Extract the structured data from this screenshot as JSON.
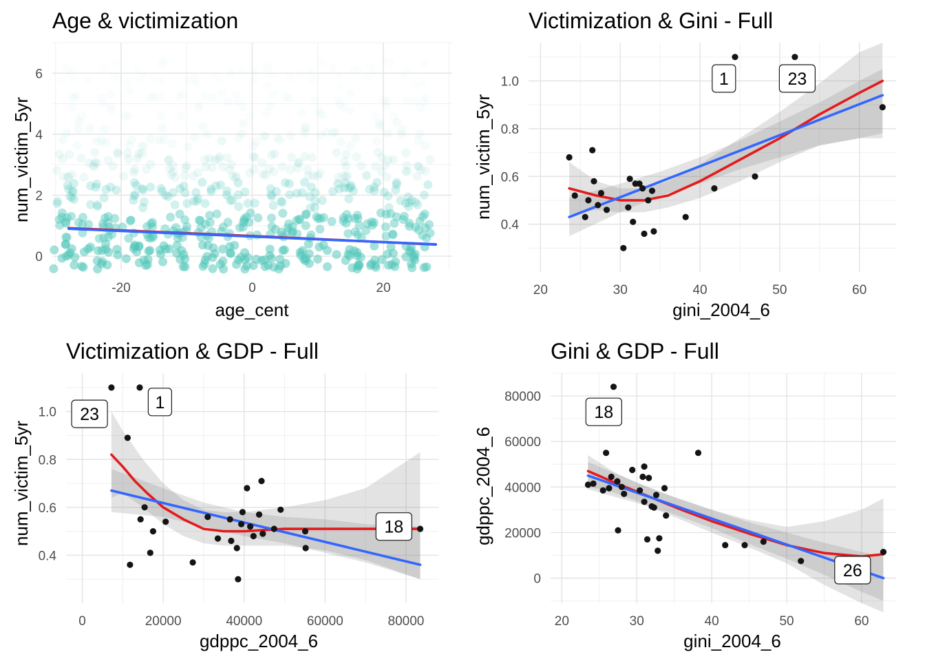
{
  "chart_data": [
    {
      "type": "scatter",
      "title": "Age & victimization",
      "xlabel": "age_cent",
      "ylabel": "num_victim_5yr",
      "xlim": [
        -30.5,
        30.5
      ],
      "ylim": [
        -0.45,
        7.0
      ],
      "xticks": [
        -20,
        0,
        20
      ],
      "yticks": [
        0,
        2,
        4,
        6
      ],
      "grid": true,
      "point_color": "#4EC5B9",
      "jitter_rows": [
        {
          "y": 0,
          "alpha": 0.95
        },
        {
          "y": 1,
          "alpha": 0.8
        },
        {
          "y": 2,
          "alpha": 0.45
        },
        {
          "y": 3,
          "alpha": 0.18
        },
        {
          "y": 4,
          "alpha": 0.1
        },
        {
          "y": 5,
          "alpha": 0.05
        },
        {
          "y": 6,
          "alpha": 0.03
        }
      ],
      "fits": [
        {
          "color": "#E41A1C",
          "x": [
            -28,
            0,
            28
          ],
          "y": [
            0.92,
            0.66,
            0.38
          ]
        },
        {
          "color": "#3366FF",
          "x": [
            -28,
            28
          ],
          "y": [
            0.9,
            0.39
          ]
        }
      ]
    },
    {
      "type": "scatter",
      "title": "Victimization & Gini - Full",
      "xlabel": "gini_2004_6",
      "ylabel": "num_victim_5yr",
      "xlim": [
        18.5,
        64.6
      ],
      "ylim": [
        0.2,
        1.16
      ],
      "xticks": [
        20,
        30,
        40,
        50,
        60
      ],
      "yticks": [
        0.4,
        0.6,
        0.8,
        1.0
      ],
      "ytick_labels": [
        "0.4",
        "0.6",
        "0.8",
        "1.0"
      ],
      "grid": true,
      "points": [
        {
          "x": 23.6,
          "y": 0.68
        },
        {
          "x": 24.3,
          "y": 0.52
        },
        {
          "x": 25.6,
          "y": 0.43
        },
        {
          "x": 26.0,
          "y": 0.5
        },
        {
          "x": 26.5,
          "y": 0.71
        },
        {
          "x": 26.7,
          "y": 0.58
        },
        {
          "x": 27.2,
          "y": 0.48
        },
        {
          "x": 27.6,
          "y": 0.53
        },
        {
          "x": 28.3,
          "y": 0.46
        },
        {
          "x": 30.4,
          "y": 0.3
        },
        {
          "x": 31.0,
          "y": 0.47
        },
        {
          "x": 31.2,
          "y": 0.59
        },
        {
          "x": 31.6,
          "y": 0.41
        },
        {
          "x": 31.9,
          "y": 0.57
        },
        {
          "x": 32.4,
          "y": 0.57
        },
        {
          "x": 32.8,
          "y": 0.55
        },
        {
          "x": 33.0,
          "y": 0.36
        },
        {
          "x": 33.5,
          "y": 0.5
        },
        {
          "x": 34.0,
          "y": 0.54
        },
        {
          "x": 34.2,
          "y": 0.37
        },
        {
          "x": 38.2,
          "y": 0.43
        },
        {
          "x": 41.8,
          "y": 0.55
        },
        {
          "x": 44.4,
          "y": 1.1
        },
        {
          "x": 46.9,
          "y": 0.6
        },
        {
          "x": 51.9,
          "y": 1.1
        },
        {
          "x": 62.9,
          "y": 0.89
        }
      ],
      "labels": [
        {
          "text": "1",
          "x": 43.0,
          "y": 1.01
        },
        {
          "text": "23",
          "x": 52.2,
          "y": 1.01
        }
      ],
      "fits": [
        {
          "color": "#E41A1C",
          "x": [
            23.6,
            27,
            30,
            33,
            36,
            40,
            45,
            50,
            55,
            60,
            62.9
          ],
          "y": [
            0.55,
            0.52,
            0.5,
            0.5,
            0.52,
            0.58,
            0.67,
            0.76,
            0.86,
            0.95,
            1.0
          ]
        },
        {
          "color": "#3366FF",
          "x": [
            23.6,
            62.9
          ],
          "y": [
            0.43,
            0.94
          ]
        }
      ],
      "bands": [
        {
          "x": [
            23.6,
            27,
            30,
            33,
            36,
            40,
            45,
            50,
            55,
            60,
            62.9
          ],
          "lower": [
            0.44,
            0.46,
            0.45,
            0.45,
            0.47,
            0.51,
            0.58,
            0.66,
            0.73,
            0.76,
            0.76
          ],
          "upper": [
            0.66,
            0.58,
            0.55,
            0.55,
            0.58,
            0.65,
            0.76,
            0.87,
            0.99,
            1.12,
            1.16
          ]
        },
        {
          "x": [
            23.6,
            30,
            35,
            40,
            45,
            50,
            55,
            60,
            62.9
          ],
          "lower": [
            0.35,
            0.45,
            0.52,
            0.57,
            0.63,
            0.68,
            0.73,
            0.76,
            0.78
          ],
          "upper": [
            0.51,
            0.57,
            0.62,
            0.68,
            0.75,
            0.83,
            0.91,
            1.0,
            1.05
          ]
        }
      ]
    },
    {
      "type": "scatter",
      "title": "Victimization & GDP - Full",
      "xlabel": "gdppc_2004_6",
      "ylabel": "num_victim_5yr",
      "xlim": [
        -4000,
        88000
      ],
      "ylim": [
        0.2,
        1.16
      ],
      "xticks": [
        0,
        20000,
        40000,
        60000,
        80000
      ],
      "yticks": [
        0.4,
        0.6,
        0.8,
        1.0
      ],
      "ytick_labels": [
        "0.4",
        "0.6",
        "0.8",
        "1.0"
      ],
      "grid": true,
      "points": [
        {
          "x": 7200,
          "y": 1.1
        },
        {
          "x": 11200,
          "y": 0.89
        },
        {
          "x": 11800,
          "y": 0.36
        },
        {
          "x": 14200,
          "y": 1.1
        },
        {
          "x": 14400,
          "y": 0.55
        },
        {
          "x": 15400,
          "y": 0.6
        },
        {
          "x": 16800,
          "y": 0.41
        },
        {
          "x": 17500,
          "y": 0.5
        },
        {
          "x": 20600,
          "y": 0.54
        },
        {
          "x": 27300,
          "y": 0.37
        },
        {
          "x": 31000,
          "y": 0.56
        },
        {
          "x": 33500,
          "y": 0.47
        },
        {
          "x": 36500,
          "y": 0.55
        },
        {
          "x": 36800,
          "y": 0.46
        },
        {
          "x": 38200,
          "y": 0.43
        },
        {
          "x": 38500,
          "y": 0.3
        },
        {
          "x": 39300,
          "y": 0.53
        },
        {
          "x": 39600,
          "y": 0.58
        },
        {
          "x": 40700,
          "y": 0.68
        },
        {
          "x": 41500,
          "y": 0.52
        },
        {
          "x": 42300,
          "y": 0.48
        },
        {
          "x": 43700,
          "y": 0.57
        },
        {
          "x": 44300,
          "y": 0.71
        },
        {
          "x": 44600,
          "y": 0.49
        },
        {
          "x": 47400,
          "y": 0.51
        },
        {
          "x": 49000,
          "y": 0.59
        },
        {
          "x": 55100,
          "y": 0.5
        },
        {
          "x": 55200,
          "y": 0.43
        },
        {
          "x": 83500,
          "y": 0.51
        }
      ],
      "labels": [
        {
          "text": "23",
          "x": 1800,
          "y": 0.99
        },
        {
          "text": "1",
          "x": 19200,
          "y": 1.04
        },
        {
          "text": "18",
          "x": 77000,
          "y": 0.52
        }
      ],
      "fits": [
        {
          "color": "#E41A1C",
          "x": [
            7200,
            10000,
            13000,
            16000,
            20000,
            25000,
            30000,
            35000,
            40000,
            50000,
            60000,
            70000,
            83500
          ],
          "y": [
            0.82,
            0.77,
            0.71,
            0.66,
            0.6,
            0.55,
            0.51,
            0.5,
            0.5,
            0.51,
            0.51,
            0.51,
            0.51
          ]
        },
        {
          "color": "#3366FF",
          "x": [
            7200,
            83500
          ],
          "y": [
            0.67,
            0.36
          ]
        }
      ],
      "bands": [
        {
          "x": [
            7200,
            10000,
            15000,
            20000,
            25000,
            30000,
            35000,
            40000,
            50000,
            60000,
            70000,
            83500
          ],
          "lower": [
            0.64,
            0.66,
            0.6,
            0.53,
            0.48,
            0.45,
            0.44,
            0.44,
            0.44,
            0.42,
            0.38,
            0.3
          ],
          "upper": [
            1.0,
            0.92,
            0.8,
            0.7,
            0.63,
            0.59,
            0.58,
            0.58,
            0.6,
            0.63,
            0.68,
            0.83
          ]
        },
        {
          "x": [
            7200,
            20000,
            30000,
            40000,
            50000,
            60000,
            70000,
            83500
          ],
          "lower": [
            0.58,
            0.56,
            0.52,
            0.48,
            0.45,
            0.41,
            0.37,
            0.3
          ],
          "upper": [
            0.76,
            0.68,
            0.62,
            0.58,
            0.56,
            0.55,
            0.53,
            0.52
          ]
        }
      ]
    },
    {
      "type": "scatter",
      "title": "Gini & GDP - Full",
      "xlabel": "gini_2004_6",
      "ylabel": "gdppc_2004_6",
      "xlim": [
        18.5,
        64.6
      ],
      "ylim": [
        -11000,
        90000
      ],
      "xticks": [
        20,
        30,
        40,
        50,
        60
      ],
      "yticks": [
        0,
        20000,
        40000,
        60000,
        80000
      ],
      "grid": true,
      "points": [
        {
          "x": 23.5,
          "y": 41000
        },
        {
          "x": 24.2,
          "y": 41500
        },
        {
          "x": 25.5,
          "y": 38500
        },
        {
          "x": 25.9,
          "y": 55000
        },
        {
          "x": 26.3,
          "y": 39500
        },
        {
          "x": 26.6,
          "y": 44500
        },
        {
          "x": 26.9,
          "y": 84000
        },
        {
          "x": 27.4,
          "y": 42500
        },
        {
          "x": 27.5,
          "y": 21000
        },
        {
          "x": 28.0,
          "y": 40000
        },
        {
          "x": 28.3,
          "y": 37000
        },
        {
          "x": 29.4,
          "y": 47500
        },
        {
          "x": 30.4,
          "y": 38500
        },
        {
          "x": 30.8,
          "y": 44500
        },
        {
          "x": 31.0,
          "y": 49000
        },
        {
          "x": 31.0,
          "y": 33500
        },
        {
          "x": 31.4,
          "y": 17000
        },
        {
          "x": 31.6,
          "y": 44000
        },
        {
          "x": 32.0,
          "y": 31500
        },
        {
          "x": 32.3,
          "y": 31000
        },
        {
          "x": 32.6,
          "y": 36500
        },
        {
          "x": 32.8,
          "y": 12000
        },
        {
          "x": 33.0,
          "y": 17500
        },
        {
          "x": 33.7,
          "y": 39500
        },
        {
          "x": 33.9,
          "y": 27500
        },
        {
          "x": 38.2,
          "y": 55000
        },
        {
          "x": 41.8,
          "y": 14500
        },
        {
          "x": 44.4,
          "y": 14500
        },
        {
          "x": 46.9,
          "y": 16000
        },
        {
          "x": 51.9,
          "y": 7500
        },
        {
          "x": 62.9,
          "y": 11500
        }
      ],
      "labels": [
        {
          "text": "18",
          "x": 25.6,
          "y": 73000
        },
        {
          "text": "26",
          "x": 58.8,
          "y": 3500
        }
      ],
      "fits": [
        {
          "color": "#E41A1C",
          "x": [
            23.5,
            27,
            30,
            33,
            36,
            40,
            45,
            50,
            55,
            60,
            62.9
          ],
          "y": [
            47000,
            42000,
            38000,
            34000,
            30000,
            25000,
            19500,
            14500,
            11000,
            9500,
            10500
          ]
        },
        {
          "color": "#3366FF",
          "x": [
            23.5,
            62.9
          ],
          "y": [
            45000,
            0
          ]
        }
      ],
      "bands": [
        {
          "x": [
            23.5,
            27,
            30,
            33,
            36,
            40,
            45,
            50,
            55,
            60,
            62.9
          ],
          "lower": [
            40000,
            37500,
            34000,
            29500,
            25500,
            20000,
            13500,
            6500,
            -3000,
            -11000,
            -15000
          ],
          "upper": [
            54000,
            46500,
            42000,
            38000,
            34500,
            30000,
            25500,
            22500,
            25000,
            30000,
            35000
          ]
        },
        {
          "x": [
            23.5,
            30,
            35,
            40,
            45,
            50,
            55,
            60,
            62.9
          ],
          "lower": [
            39000,
            33000,
            28000,
            22000,
            15000,
            8500,
            1500,
            -6000,
            -10000
          ],
          "upper": [
            51000,
            42000,
            35500,
            30000,
            24500,
            20000,
            15500,
            11500,
            9500
          ]
        }
      ]
    }
  ]
}
